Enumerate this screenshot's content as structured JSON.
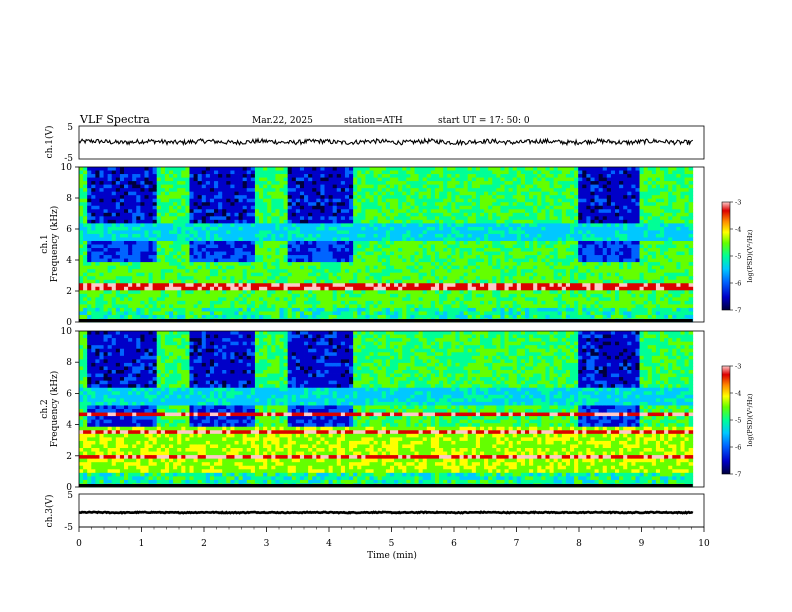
{
  "header": {
    "title": "VLF  Spectra",
    "date": "Mar.22, 2025",
    "station": "station=ATH",
    "start_ut": "start  UT  =    17: 50: 0"
  },
  "chart_data": {
    "type": "heatmap",
    "xlabel": "Time  (min)",
    "xlim": [
      0,
      10
    ],
    "xticks": [
      "0",
      "1",
      "2",
      "3",
      "4",
      "5",
      "6",
      "7",
      "8",
      "9",
      "10"
    ],
    "data_end_min": 9.82,
    "panels": [
      {
        "id": "ch1-waveform",
        "type": "line",
        "ylabel": "ch.1(V)",
        "ylim": [
          -5,
          5
        ],
        "yticks": [
          "5",
          "-5"
        ],
        "level": 0.2,
        "amplitude": 0.7
      },
      {
        "id": "ch1-spectrum",
        "type": "heatmap",
        "ylabel": "ch.1\nFrequency  (kHz)",
        "ylim": [
          0,
          10
        ],
        "yticks": [
          "0",
          "2",
          "4",
          "6",
          "8",
          "10"
        ],
        "colorbar": {
          "label": "log(PSD)(V²/Hz)",
          "range": [
            -7,
            -3
          ],
          "ticks": [
            "-3",
            "-4",
            "-5",
            "-6",
            "-7"
          ]
        },
        "quiet_intervals_min": [
          [
            0.1,
            1.25
          ],
          [
            1.8,
            2.8
          ],
          [
            3.35,
            4.4
          ],
          [
            8.0,
            9.0
          ]
        ],
        "tone_lines_khz": [
          2.3
        ]
      },
      {
        "id": "ch2-spectrum",
        "type": "heatmap",
        "ylabel": "ch.2\nFrequency  (kHz)",
        "ylim": [
          0,
          10
        ],
        "yticks": [
          "0",
          "2",
          "4",
          "6",
          "8",
          "10"
        ],
        "colorbar": {
          "label": "log(PSD)(V²/Hz)",
          "range": [
            -7,
            -3
          ],
          "ticks": [
            "-3",
            "-4",
            "-5",
            "-6",
            "-7"
          ]
        },
        "quiet_intervals_min": [
          [
            0.1,
            1.25
          ],
          [
            1.8,
            2.8
          ],
          [
            3.35,
            4.4
          ],
          [
            8.0,
            9.0
          ]
        ],
        "tone_lines_khz": [
          2.0,
          3.5,
          4.6
        ]
      },
      {
        "id": "ch3-waveform",
        "type": "line",
        "ylabel": "ch.3(V)",
        "ylim": [
          -5,
          5
        ],
        "yticks": [
          "5",
          "-5"
        ],
        "level": -0.6,
        "amplitude": 0.15
      }
    ],
    "colorscale": [
      "#00003c",
      "#0000c8",
      "#0064ff",
      "#00c8ff",
      "#00ff96",
      "#64ff00",
      "#ffff00",
      "#ff8c00",
      "#dc0000",
      "#ffc8c8"
    ]
  }
}
